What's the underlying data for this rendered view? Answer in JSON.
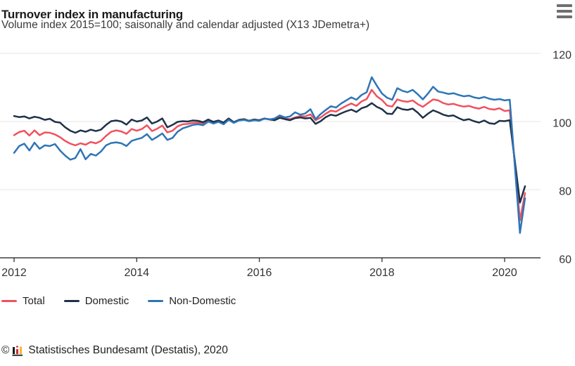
{
  "chart_data": {
    "type": "line",
    "title": "Turnover index in manufacturing",
    "subtitle": "Volume index 2015=100; saisonally and calendar adjusted (X13 JDemetra+)",
    "frequency": "monthly",
    "x_start": "2012-01",
    "x_end": "2020-05",
    "x_ticks": [
      "2012",
      "2014",
      "2016",
      "2018",
      "2020"
    ],
    "x_tick_month_index": [
      0,
      24,
      48,
      72,
      96
    ],
    "y_ticks": [
      "60",
      "80",
      "100",
      "120"
    ],
    "ylim": [
      60,
      123
    ],
    "grid": "horizontal",
    "legend_position": "bottom-left",
    "series": [
      {
        "name": "Total",
        "color": "#f0515f",
        "values": [
          96.0,
          96.9,
          97.3,
          95.9,
          97.4,
          96.0,
          96.8,
          96.7,
          96.2,
          95.4,
          94.3,
          93.5,
          93.0,
          93.6,
          93.2,
          94.0,
          93.6,
          94.3,
          95.8,
          97.0,
          97.4,
          97.1,
          96.4,
          97.8,
          97.3,
          97.8,
          98.9,
          97.2,
          97.9,
          98.8,
          96.8,
          97.3,
          98.6,
          99.2,
          99.3,
          99.6,
          99.7,
          99.4,
          100.3,
          99.7,
          100.1,
          99.5,
          100.7,
          99.8,
          100.4,
          100.6,
          100.2,
          100.5,
          100.3,
          100.8,
          100.7,
          100.5,
          101.3,
          100.9,
          100.7,
          101.2,
          101.6,
          101.5,
          102.1,
          100.4,
          101.2,
          102.3,
          103.2,
          102.9,
          103.8,
          104.6,
          105.3,
          104.6,
          105.9,
          106.6,
          109.3,
          107.4,
          106.3,
          104.7,
          104.4,
          106.5,
          106.0,
          105.8,
          106.2,
          105.1,
          104.3,
          105.4,
          106.5,
          106.2,
          105.4,
          105.0,
          105.2,
          104.7,
          104.4,
          104.6,
          104.1,
          103.8,
          104.3,
          103.7,
          103.5,
          103.9,
          103.1,
          103.3,
          87.5,
          71.0,
          79.0
        ]
      },
      {
        "name": "Domestic",
        "color": "#1e3148",
        "values": [
          101.6,
          101.3,
          101.5,
          100.9,
          101.4,
          101.1,
          100.5,
          100.8,
          99.9,
          99.7,
          98.3,
          97.3,
          96.7,
          97.4,
          97.0,
          97.6,
          97.2,
          97.6,
          99.0,
          100.1,
          100.3,
          100.0,
          99.1,
          100.6,
          100.0,
          100.3,
          101.2,
          99.4,
          100.0,
          100.9,
          98.3,
          99.0,
          99.9,
          100.1,
          100.0,
          100.3,
          100.2,
          99.8,
          100.6,
          99.9,
          100.3,
          99.7,
          100.9,
          99.8,
          100.5,
          100.7,
          100.2,
          100.6,
          100.4,
          100.9,
          100.6,
          100.4,
          101.1,
          100.7,
          100.4,
          101.0,
          101.2,
          100.9,
          101.1,
          99.3,
          100.1,
          101.3,
          102.0,
          101.7,
          102.4,
          103.0,
          103.5,
          102.8,
          103.9,
          104.4,
          105.4,
          104.3,
          103.6,
          102.3,
          102.2,
          104.2,
          103.6,
          103.4,
          103.8,
          102.6,
          101.1,
          102.3,
          103.3,
          102.7,
          102.0,
          101.6,
          101.8,
          101.0,
          100.4,
          100.7,
          100.1,
          99.7,
          100.3,
          99.5,
          99.3,
          100.2,
          100.1,
          100.4,
          88.5,
          76.2,
          81.0
        ]
      },
      {
        "name": "Non-Domestic",
        "color": "#2e75b6",
        "values": [
          90.8,
          92.8,
          93.5,
          91.5,
          93.8,
          92.0,
          93.0,
          92.8,
          93.4,
          91.5,
          90.0,
          88.8,
          89.3,
          91.9,
          88.9,
          90.5,
          90.0,
          91.2,
          93.0,
          93.7,
          93.9,
          93.6,
          92.8,
          94.3,
          94.8,
          95.2,
          96.3,
          94.6,
          95.5,
          96.5,
          94.6,
          95.2,
          97.0,
          98.0,
          98.5,
          99.0,
          99.2,
          98.9,
          100.0,
          99.4,
          99.9,
          99.2,
          100.5,
          99.6,
          100.3,
          100.5,
          100.1,
          100.4,
          100.2,
          100.9,
          100.6,
          100.9,
          101.8,
          101.2,
          101.5,
          102.7,
          102.0,
          102.4,
          103.6,
          100.7,
          102.2,
          103.4,
          104.5,
          104.1,
          105.3,
          106.2,
          107.1,
          106.4,
          107.8,
          108.6,
          113.0,
          110.5,
          108.2,
          107.0,
          106.4,
          109.8,
          109.0,
          108.6,
          109.3,
          108.0,
          106.5,
          108.2,
          110.2,
          108.8,
          108.5,
          108.1,
          108.3,
          107.8,
          107.4,
          107.6,
          107.1,
          106.8,
          107.2,
          106.7,
          106.4,
          106.6,
          106.2,
          106.4,
          87.0,
          67.3,
          77.5
        ]
      }
    ]
  },
  "icons": {
    "menu": "hamburger-menu",
    "logo": "destatis-bar-chart-logo"
  },
  "footer": {
    "copyright": "©",
    "source": "Statistisches Bundesamt (Destatis), 2020"
  },
  "colors": {
    "grid": "#e6e6e6",
    "axis": "#3f3f3f",
    "tick_text": "#333333",
    "title": "#1a1a1a",
    "subtitle": "#3a3a3a",
    "menu_icon": "#6f6f6f"
  }
}
